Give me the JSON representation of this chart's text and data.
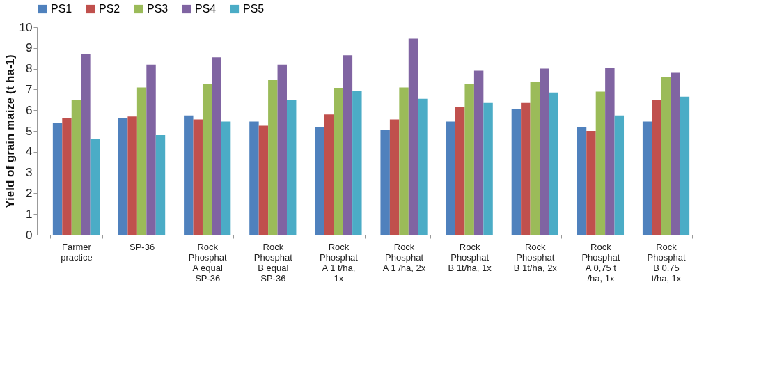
{
  "chart_data": {
    "type": "bar",
    "ylabel": "Yield of grain maize (t ha-1)",
    "categories": [
      "Farmer\npractice",
      "SP-36",
      "Rock\nPhosphat\nA equal\nSP-36",
      "Rock\nPhosphat\nB equal\nSP-36",
      "Rock\nPhosphat\nA 1 t/ha,\n1x",
      "Rock\nPhosphat\nA 1 /ha, 2x",
      "Rock\nPhosphat\nB 1t/ha, 1x",
      "Rock\nPhosphat\nB 1t/ha, 2x",
      "Rock\nPhosphat\nA 0,75 t\n/ha, 1x",
      "Rock\nPhosphat\nB 0.75\nt/ha, 1x"
    ],
    "series": [
      {
        "name": "PS1",
        "color": "#4f81bd",
        "values": [
          5.4,
          5.6,
          5.75,
          5.45,
          5.2,
          5.05,
          5.45,
          6.05,
          5.2,
          5.45
        ]
      },
      {
        "name": "PS2",
        "color": "#c0504d",
        "values": [
          5.6,
          5.7,
          5.55,
          5.25,
          5.8,
          5.55,
          6.15,
          6.35,
          5.0,
          6.5
        ]
      },
      {
        "name": "PS3",
        "color": "#9bbb59",
        "values": [
          6.5,
          7.1,
          7.25,
          7.45,
          7.05,
          7.1,
          7.25,
          7.35,
          6.9,
          7.6
        ]
      },
      {
        "name": "PS4",
        "color": "#8064a2",
        "values": [
          8.7,
          8.2,
          8.55,
          8.2,
          8.65,
          9.45,
          7.9,
          8.0,
          8.05,
          7.8
        ]
      },
      {
        "name": "PS5",
        "color": "#4bacc6",
        "values": [
          4.6,
          4.8,
          5.45,
          6.5,
          6.95,
          6.55,
          6.35,
          6.85,
          5.75,
          6.65
        ]
      }
    ],
    "ylim": [
      0,
      10
    ],
    "yticks": [
      0,
      1,
      2,
      3,
      4,
      5,
      6,
      7,
      8,
      9,
      10
    ],
    "grid": false,
    "legend": "top"
  }
}
